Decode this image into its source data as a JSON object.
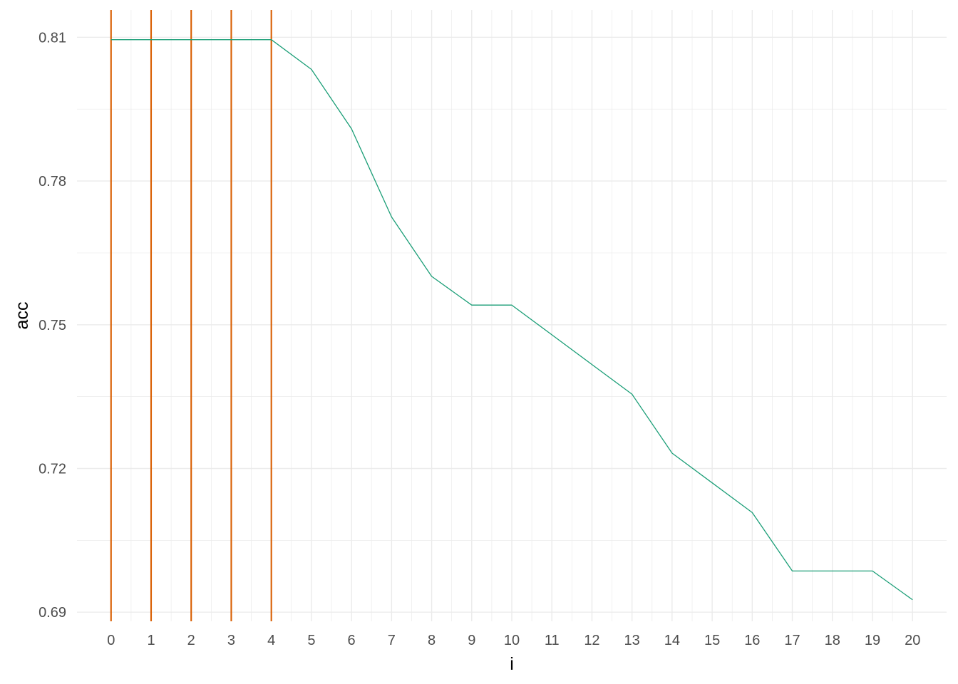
{
  "chart_data": {
    "type": "line",
    "xlabel": "i",
    "ylabel": "acc",
    "xlim": [
      -0.85,
      20.85
    ],
    "ylim": [
      0.6881,
      0.8157
    ],
    "x_ticks": [
      0,
      1,
      2,
      3,
      4,
      5,
      6,
      7,
      8,
      9,
      10,
      11,
      12,
      13,
      14,
      15,
      16,
      17,
      18,
      19,
      20
    ],
    "y_ticks": [
      0.69,
      0.72,
      0.75,
      0.78,
      0.81
    ],
    "y_tick_labels": [
      "0.69",
      "0.72",
      "0.75",
      "0.78",
      "0.81"
    ],
    "grid": true,
    "series": [
      {
        "x": [
          0,
          1,
          2,
          3,
          4,
          5,
          6,
          7,
          8,
          9,
          10,
          11,
          12,
          13,
          14,
          15,
          16,
          17,
          18,
          19,
          20
        ],
        "values": [
          0.8095,
          0.8095,
          0.8095,
          0.8095,
          0.8095,
          0.8033,
          0.7909,
          0.7725,
          0.7601,
          0.7541,
          0.7541,
          0.7479,
          0.7417,
          0.7355,
          0.7232,
          0.717,
          0.7108,
          0.6986,
          0.6986,
          0.6986,
          0.6926
        ],
        "color": "#1b9e77"
      }
    ],
    "vlines": [
      0,
      1,
      2,
      3,
      4
    ],
    "vline_color": "#d95f02"
  }
}
